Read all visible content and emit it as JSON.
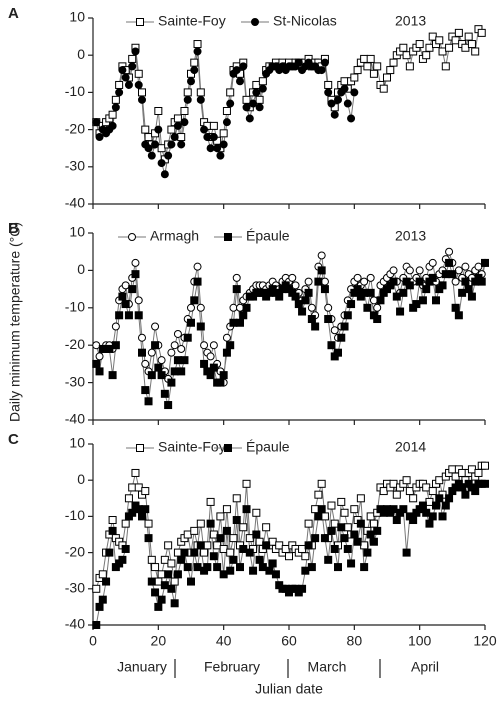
{
  "shared": {
    "y_label": "Daily minimum temperature (°C)",
    "x_label": "Julian date",
    "months": [
      "January",
      "February",
      "March",
      "April"
    ]
  },
  "chart_data": [
    {
      "type": "line",
      "panel_label": "A",
      "annotation": "2013",
      "x": [
        1,
        2,
        3,
        4,
        5,
        6,
        7,
        8,
        9,
        10,
        11,
        12,
        13,
        14,
        15,
        16,
        17,
        18,
        19,
        20,
        21,
        22,
        23,
        24,
        25,
        26,
        27,
        28,
        29,
        30,
        31,
        32,
        33,
        34,
        35,
        36,
        37,
        38,
        39,
        40,
        41,
        42,
        43,
        44,
        45,
        46,
        47,
        48,
        49,
        50,
        51,
        52,
        53,
        54,
        55,
        56,
        57,
        58,
        59,
        60,
        61,
        62,
        63,
        64,
        65,
        66,
        67,
        68,
        69,
        70,
        71,
        72,
        73,
        74,
        75,
        76,
        77,
        78,
        79,
        80,
        81,
        82,
        83,
        84,
        85,
        86,
        87,
        88,
        89,
        90,
        91,
        92,
        93,
        94,
        95,
        96,
        97,
        98,
        99,
        100,
        101,
        102,
        103,
        104,
        105,
        106,
        107,
        108,
        109,
        110,
        111,
        112,
        113,
        114,
        115,
        116,
        117,
        118,
        119
      ],
      "series": [
        {
          "name": "Sainte-Foy",
          "color": "#000000",
          "marker": "square-open",
          "values": [
            -18,
            -21,
            -19,
            -18,
            -17,
            -16,
            -12,
            -8,
            -3,
            -4,
            -6,
            -1,
            2,
            -5,
            -10,
            -20,
            -22,
            -24,
            -21,
            -15,
            -25,
            -28,
            -24,
            -20,
            -18,
            -17,
            -22,
            -15,
            -10,
            -5,
            -2,
            3,
            -10,
            -18,
            -19,
            -22,
            -19,
            -23,
            -25,
            -21,
            -15,
            -10,
            -4,
            -3,
            -5,
            -2,
            -12,
            -14,
            -10,
            -8,
            -12,
            -7,
            -4,
            -3,
            -3,
            -2,
            -3,
            -2,
            -3,
            -2,
            -3,
            -2,
            -2,
            -3,
            -2,
            -1,
            -3,
            -2,
            -2,
            -3,
            -1,
            -8,
            -12,
            -14,
            -10,
            -8,
            -7,
            -9,
            -7,
            -6,
            -4,
            -2,
            -1,
            -3,
            -1,
            -5,
            -3,
            -8,
            -9,
            -6,
            -4,
            -2,
            0,
            1,
            2,
            0,
            -3,
            1,
            2,
            3,
            -1,
            0,
            2,
            5,
            3,
            4,
            1,
            -3,
            2,
            5,
            4,
            6,
            3,
            2,
            5,
            3,
            1,
            7,
            6
          ]
        },
        {
          "name": "St-Nicolas",
          "color": "#000000",
          "marker": "circle-filled",
          "values": [
            -18,
            -22,
            -20,
            -21,
            -20,
            -19,
            -14,
            -10,
            -4,
            -6,
            -8,
            -3,
            1,
            -8,
            -12,
            -24,
            -25,
            -27,
            -24,
            -20,
            -29,
            -32,
            -27,
            -24,
            -22,
            -19,
            -24,
            -18,
            -12,
            -7,
            -4,
            1,
            -12,
            -20,
            -22,
            -25,
            -22,
            -25,
            -27,
            -24,
            -18,
            -13,
            -5,
            -4,
            -7,
            -3,
            -14,
            -17,
            -13,
            -10,
            -14,
            -9,
            -5,
            -4,
            -3,
            -3,
            -4,
            -3,
            -4,
            -3,
            -3,
            -3,
            -2,
            -4,
            -3,
            -2,
            -3,
            -3,
            -4,
            -4,
            -2,
            -10,
            -13,
            -16,
            -12,
            -10,
            -9,
            -13,
            -17,
            -10,
            null,
            null,
            null,
            null,
            null,
            null,
            null,
            null,
            null,
            null,
            null,
            null,
            null,
            null,
            null,
            null,
            null,
            null,
            null,
            null,
            null,
            null,
            null,
            null,
            null,
            null,
            null,
            null,
            null,
            null,
            null,
            null,
            null,
            null,
            null,
            null,
            null,
            null,
            null
          ]
        }
      ],
      "xlim": [
        0,
        120
      ],
      "xticks": [
        0,
        20,
        40,
        60,
        80,
        100,
        120
      ],
      "ylim": [
        -40,
        10
      ],
      "yticks": [
        -40,
        -30,
        -20,
        -10,
        0,
        10
      ]
    },
    {
      "type": "line",
      "panel_label": "B",
      "annotation": "2013",
      "x": [
        1,
        2,
        3,
        4,
        5,
        6,
        7,
        8,
        9,
        10,
        11,
        12,
        13,
        14,
        15,
        16,
        17,
        18,
        19,
        20,
        21,
        22,
        23,
        24,
        25,
        26,
        27,
        28,
        29,
        30,
        31,
        32,
        33,
        34,
        35,
        36,
        37,
        38,
        39,
        40,
        41,
        42,
        43,
        44,
        45,
        46,
        47,
        48,
        49,
        50,
        51,
        52,
        53,
        54,
        55,
        56,
        57,
        58,
        59,
        60,
        61,
        62,
        63,
        64,
        65,
        66,
        67,
        68,
        69,
        70,
        71,
        72,
        73,
        74,
        75,
        76,
        77,
        78,
        79,
        80,
        81,
        82,
        83,
        84,
        85,
        86,
        87,
        88,
        89,
        90,
        91,
        92,
        93,
        94,
        95,
        96,
        97,
        98,
        99,
        100,
        101,
        102,
        103,
        104,
        105,
        106,
        107,
        108,
        109,
        110,
        111,
        112,
        113,
        114,
        115,
        116,
        117,
        118,
        119,
        120
      ],
      "series": [
        {
          "name": "Armagh",
          "color": "#000000",
          "marker": "circle-open",
          "values": [
            -20,
            -23,
            -21,
            -20,
            -20,
            -21,
            -15,
            -8,
            -5,
            -4,
            -9,
            -2,
            2,
            -8,
            -18,
            -25,
            -27,
            -22,
            -15,
            -20,
            -24,
            -27,
            -29,
            -22,
            -20,
            -17,
            -21,
            -18,
            -13,
            -10,
            -3,
            1,
            -10,
            -20,
            -22,
            -23,
            -20,
            -25,
            -27,
            -30,
            -18,
            -15,
            -10,
            -2,
            -10,
            -8,
            -7,
            -6,
            -5,
            -4,
            -4,
            -4,
            -5,
            -4,
            -3,
            -4,
            -5,
            -3,
            -2,
            -3,
            -2,
            -4,
            -6,
            -8,
            -5,
            -3,
            -10,
            -12,
            1,
            4,
            -3,
            -10,
            -13,
            -16,
            -18,
            -15,
            -12,
            -8,
            -5,
            -3,
            -2,
            -4,
            -3,
            -6,
            -2,
            -8,
            -10,
            -4,
            -3,
            -2,
            -1,
            0,
            -3,
            -6,
            -2,
            1,
            0,
            -3,
            -2,
            0,
            -4,
            -2,
            1,
            2,
            -3,
            -1,
            0,
            3,
            5,
            2,
            -3,
            0,
            -2,
            1,
            -1,
            -2,
            0,
            1,
            -1,
            2
          ]
        },
        {
          "name": "Épaule",
          "color": "#000000",
          "marker": "square-filled",
          "values": [
            -25,
            -27,
            -21,
            -21,
            -21,
            -28,
            -20,
            -12,
            -7,
            -9,
            -12,
            -5,
            -1,
            -12,
            -22,
            -32,
            -35,
            -28,
            -20,
            -26,
            -28,
            -33,
            -36,
            -30,
            -27,
            -24,
            -27,
            -24,
            -18,
            -14,
            -8,
            -3,
            -15,
            -25,
            -27,
            -28,
            -26,
            -30,
            -30,
            -28,
            -22,
            -20,
            -14,
            -5,
            -14,
            -12,
            -10,
            -7,
            -7,
            -6,
            -6,
            -6,
            -7,
            -6,
            -5,
            -6,
            -7,
            -5,
            -4,
            -5,
            -6,
            -7,
            -9,
            -11,
            -8,
            -6,
            -13,
            -15,
            -3,
            0,
            -5,
            -13,
            -20,
            -23,
            -22,
            -18,
            -15,
            -12,
            -9,
            -6,
            -5,
            -7,
            -6,
            -10,
            -6,
            -12,
            -13,
            -8,
            -6,
            -5,
            -4,
            -3,
            -7,
            -11,
            -6,
            -3,
            -4,
            -10,
            -9,
            -3,
            -8,
            -5,
            -3,
            -2,
            -8,
            -5,
            -4,
            -1,
            2,
            -1,
            -10,
            -12,
            -6,
            -3,
            -5,
            -7,
            -3,
            -2,
            -3,
            2
          ]
        }
      ],
      "xlim": [
        0,
        120
      ],
      "xticks": [
        0,
        20,
        40,
        60,
        80,
        100,
        120
      ],
      "ylim": [
        -40,
        10
      ],
      "yticks": [
        -40,
        -30,
        -20,
        -10,
        0,
        10
      ]
    },
    {
      "type": "line",
      "panel_label": "C",
      "annotation": "2014",
      "x": [
        1,
        2,
        3,
        4,
        5,
        6,
        7,
        8,
        9,
        10,
        11,
        12,
        13,
        14,
        15,
        16,
        17,
        18,
        19,
        20,
        21,
        22,
        23,
        24,
        25,
        26,
        27,
        28,
        29,
        30,
        31,
        32,
        33,
        34,
        35,
        36,
        37,
        38,
        39,
        40,
        41,
        42,
        43,
        44,
        45,
        46,
        47,
        48,
        49,
        50,
        51,
        52,
        53,
        54,
        55,
        56,
        57,
        58,
        59,
        60,
        61,
        62,
        63,
        64,
        65,
        66,
        67,
        68,
        69,
        70,
        71,
        72,
        73,
        74,
        75,
        76,
        77,
        78,
        79,
        80,
        81,
        82,
        83,
        84,
        85,
        86,
        87,
        88,
        89,
        90,
        91,
        92,
        93,
        94,
        95,
        96,
        97,
        98,
        99,
        100,
        101,
        102,
        103,
        104,
        105,
        106,
        107,
        108,
        109,
        110,
        111,
        112,
        113,
        114,
        115,
        116,
        117,
        118,
        119,
        120
      ],
      "series": [
        {
          "name": "Sainte-Foy",
          "color": "#000000",
          "marker": "square-open",
          "values": [
            -30,
            -27,
            -26,
            -20,
            -15,
            -11,
            -16,
            -17,
            -18,
            -12,
            -5,
            -2,
            2,
            -2,
            -4,
            -3,
            -12,
            -22,
            -24,
            -28,
            -26,
            -22,
            -18,
            -23,
            -28,
            -20,
            -17,
            -16,
            -15,
            -20,
            -14,
            -18,
            -12,
            -20,
            -18,
            -6,
            -15,
            -18,
            -10,
            -19,
            -8,
            -20,
            -16,
            -5,
            -18,
            -13,
            -1,
            -16,
            -19,
            -9,
            -17,
            -19,
            -13,
            -18,
            -17,
            -19,
            -18,
            -20,
            -19,
            -21,
            -18,
            -19,
            -20,
            -19,
            -21,
            -12,
            -18,
            -8,
            -4,
            -1,
            -10,
            -16,
            -7,
            -12,
            -18,
            -6,
            -9,
            -13,
            -15,
            -8,
            -11,
            -5,
            -18,
            -14,
            -10,
            -12,
            -9,
            -2,
            -3,
            -1,
            -2,
            -1,
            -4,
            -2,
            -1,
            0,
            -3,
            -5,
            -2,
            -1,
            -1,
            -2,
            -6,
            -3,
            -1,
            0,
            -4,
            1,
            2,
            3,
            1,
            3,
            2,
            0,
            2,
            3,
            1,
            2,
            4,
            4
          ]
        },
        {
          "name": "Épaule",
          "color": "#000000",
          "marker": "square-filled",
          "values": [
            -40,
            -35,
            -33,
            -28,
            -20,
            -14,
            -24,
            -23,
            -22,
            -19,
            -10,
            -9,
            -7,
            -8,
            -10,
            -8,
            -16,
            -28,
            -31,
            -35,
            -33,
            -29,
            -26,
            -30,
            -34,
            -26,
            -22,
            -20,
            -24,
            -28,
            -20,
            -24,
            -18,
            -25,
            -24,
            -12,
            -21,
            -24,
            -16,
            -26,
            -14,
            -25,
            -22,
            -11,
            -24,
            -19,
            -8,
            -20,
            -25,
            -15,
            -22,
            -24,
            -18,
            -25,
            -23,
            -26,
            -29,
            -30,
            -30,
            -31,
            -30,
            -30,
            -31,
            -30,
            -25,
            -18,
            -24,
            -16,
            -10,
            -8,
            -16,
            -22,
            -14,
            -19,
            -24,
            -13,
            -16,
            -19,
            -23,
            -15,
            -17,
            -12,
            -24,
            -20,
            -15,
            -17,
            -14,
            -8,
            -9,
            -8,
            -9,
            -8,
            -11,
            -9,
            -8,
            -20,
            -10,
            -11,
            -9,
            -8,
            -7,
            -9,
            -12,
            -10,
            -7,
            -5,
            -10,
            -7,
            -5,
            -3,
            -2,
            -1,
            -2,
            -4,
            -1,
            -2,
            -3,
            -1,
            -1,
            -1
          ]
        }
      ],
      "xlim": [
        0,
        120
      ],
      "xticks": [
        0,
        20,
        40,
        60,
        80,
        100,
        120
      ],
      "ylim": [
        -40,
        10
      ],
      "yticks": [
        -40,
        -30,
        -20,
        -10,
        0,
        10
      ]
    }
  ]
}
